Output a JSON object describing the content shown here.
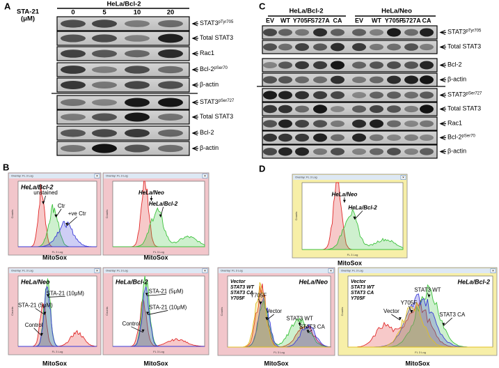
{
  "panel_a": {
    "label": "A",
    "treatment": "STA-21",
    "unit": "(μM)",
    "cell_line": "HeLa/Bcl-2",
    "doses": [
      "0",
      "5",
      "10",
      "20"
    ],
    "bands": [
      {
        "name": "STAT3",
        "sup": "pTyr705"
      },
      {
        "name": "Total STAT3"
      },
      {
        "name": "Rac1"
      },
      {
        "name": "Bcl-2",
        "sup": "pSer70"
      },
      {
        "name": "β-actin"
      },
      {
        "name": "STAT3",
        "sup": "pSer727"
      },
      {
        "name": "Total STAT3"
      },
      {
        "name": "Bcl-2"
      },
      {
        "name": "β-actin"
      }
    ]
  },
  "panel_c": {
    "label": "C",
    "groups": [
      "HeLa/Bcl-2",
      "HeLa/Neo"
    ],
    "lanes": [
      "EV",
      "WT",
      "Y705F",
      "S727A",
      "CA",
      "EV",
      "WT",
      "Y705F",
      "S727A",
      "CA"
    ],
    "bands": [
      {
        "name": "STAT3",
        "sup": "pTyr705"
      },
      {
        "name": "Total STAT3"
      },
      {
        "name": "Bcl-2"
      },
      {
        "name": "β-actin"
      },
      {
        "name": "STAT3",
        "sup": "pSer727"
      },
      {
        "name": "Total STAT3"
      },
      {
        "name": "Rac1"
      },
      {
        "name": "Bcl-2",
        "sup": "pSer70"
      },
      {
        "name": "β-actin"
      }
    ]
  },
  "panel_b": {
    "label": "B",
    "histograms": [
      {
        "window_title": "Overlay: FL 3 Log",
        "title": "HeLa/Bcl-2",
        "annotations": [
          "unstained",
          "Ctr",
          "+ve Ctr"
        ],
        "y_label": "Counts",
        "x_label": "FL 3 Log",
        "caption": "MitoSox"
      },
      {
        "window_title": "Overlay: FL 3 Log",
        "annotations": [
          "HeLa/Neo",
          "HeLa/Bcl-2"
        ],
        "y_label": "Counts",
        "x_label": "FL 3 Log",
        "caption": "MitoSox"
      },
      {
        "window_title": "Overlay: FL 3 Log",
        "title": "HeLa/Neo",
        "annotations": [
          "STA-21 (5μM)",
          "STA-21 (10μM)",
          "Control"
        ],
        "y_label": "Counts",
        "x_label": "FL 3 Log",
        "caption": "MitoSox"
      },
      {
        "window_title": "Overlay: FL 3 Log",
        "title": "HeLa/Bcl-2",
        "annotations": [
          "STA-21 (5μM)",
          "STA-21 (10μM)",
          "Control"
        ],
        "y_label": "Counts",
        "x_label": "FL 3 Log",
        "caption": "MitoSox"
      }
    ]
  },
  "panel_d": {
    "label": "D",
    "histograms": [
      {
        "window_title": "Overlay: FL 3 Log",
        "annotations": [
          "HeLa/Neo",
          "HeLa/Bcl-2"
        ],
        "y_label": "Counts",
        "x_label": "FL 3 Log",
        "caption": "MitoSox"
      },
      {
        "window_title": "Overlay: FL 3 Log",
        "title": "HeLa/Neo",
        "legend": [
          {
            "name": "Vector",
            "color": "#e02828"
          },
          {
            "name": "STAT3 WT",
            "color": "#3cc23c"
          },
          {
            "name": "STAT3 CA",
            "color": "#3a3ad8"
          },
          {
            "name": "Y705F",
            "color": "#e0c020"
          }
        ],
        "annotations": [
          "Y705F",
          "Vector",
          "STAT3 WT",
          "STAT3 CA"
        ],
        "y_label": "Counts",
        "x_label": "FL 3 Log",
        "caption": "MitoSox"
      },
      {
        "window_title": "Overlay: FL 3 Log",
        "title": "HeLa/Bcl-2",
        "legend": [
          {
            "name": "Vector",
            "color": "#e02828"
          },
          {
            "name": "STAT3 WT",
            "color": "#3cc23c"
          },
          {
            "name": "STAT3 CA",
            "color": "#3a3ad8"
          },
          {
            "name": "Y705F",
            "color": "#e0c020"
          }
        ],
        "annotations": [
          "Vector",
          "Y705F",
          "STAT3 WT",
          "STAT3 CA"
        ],
        "y_label": "Counts",
        "x_label": "FL 3 Log",
        "caption": "MitoSox"
      }
    ]
  }
}
